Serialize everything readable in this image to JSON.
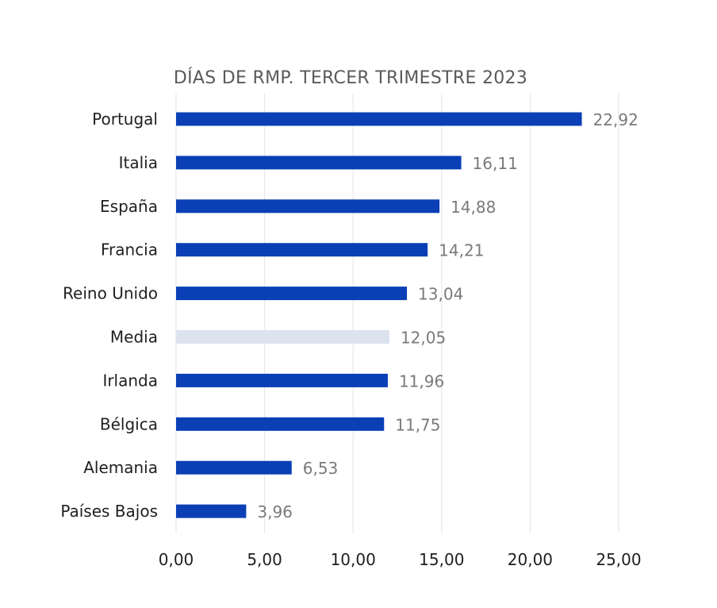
{
  "chart_data": {
    "type": "bar",
    "orientation": "horizontal",
    "title": "DÍAS DE RMP. TERCER TRIMESTRE 2023",
    "categories": [
      "Portugal",
      "Italia",
      "España",
      "Francia",
      "Reino Unido",
      "Media",
      "Irlanda",
      "Bélgica",
      "Alemania",
      "Países Bajos"
    ],
    "values": [
      22.92,
      16.11,
      14.88,
      14.21,
      13.04,
      12.05,
      11.96,
      11.75,
      6.53,
      3.96
    ],
    "value_labels": [
      "22,92",
      "16,11",
      "14,88",
      "14,21",
      "13,04",
      "12,05",
      "11,96",
      "11,75",
      "6,53",
      "3,96"
    ],
    "xlim": [
      0,
      25
    ],
    "x_ticks": [
      0,
      5,
      10,
      15,
      20,
      25
    ],
    "x_tick_labels": [
      "0,00",
      "5,00",
      "10,00",
      "15,00",
      "20,00",
      "25,00"
    ],
    "grid": true,
    "colors": {
      "bar": "#0a3fb5",
      "highlight_bar": "#dce3ee",
      "highlight_category": "Media"
    }
  }
}
